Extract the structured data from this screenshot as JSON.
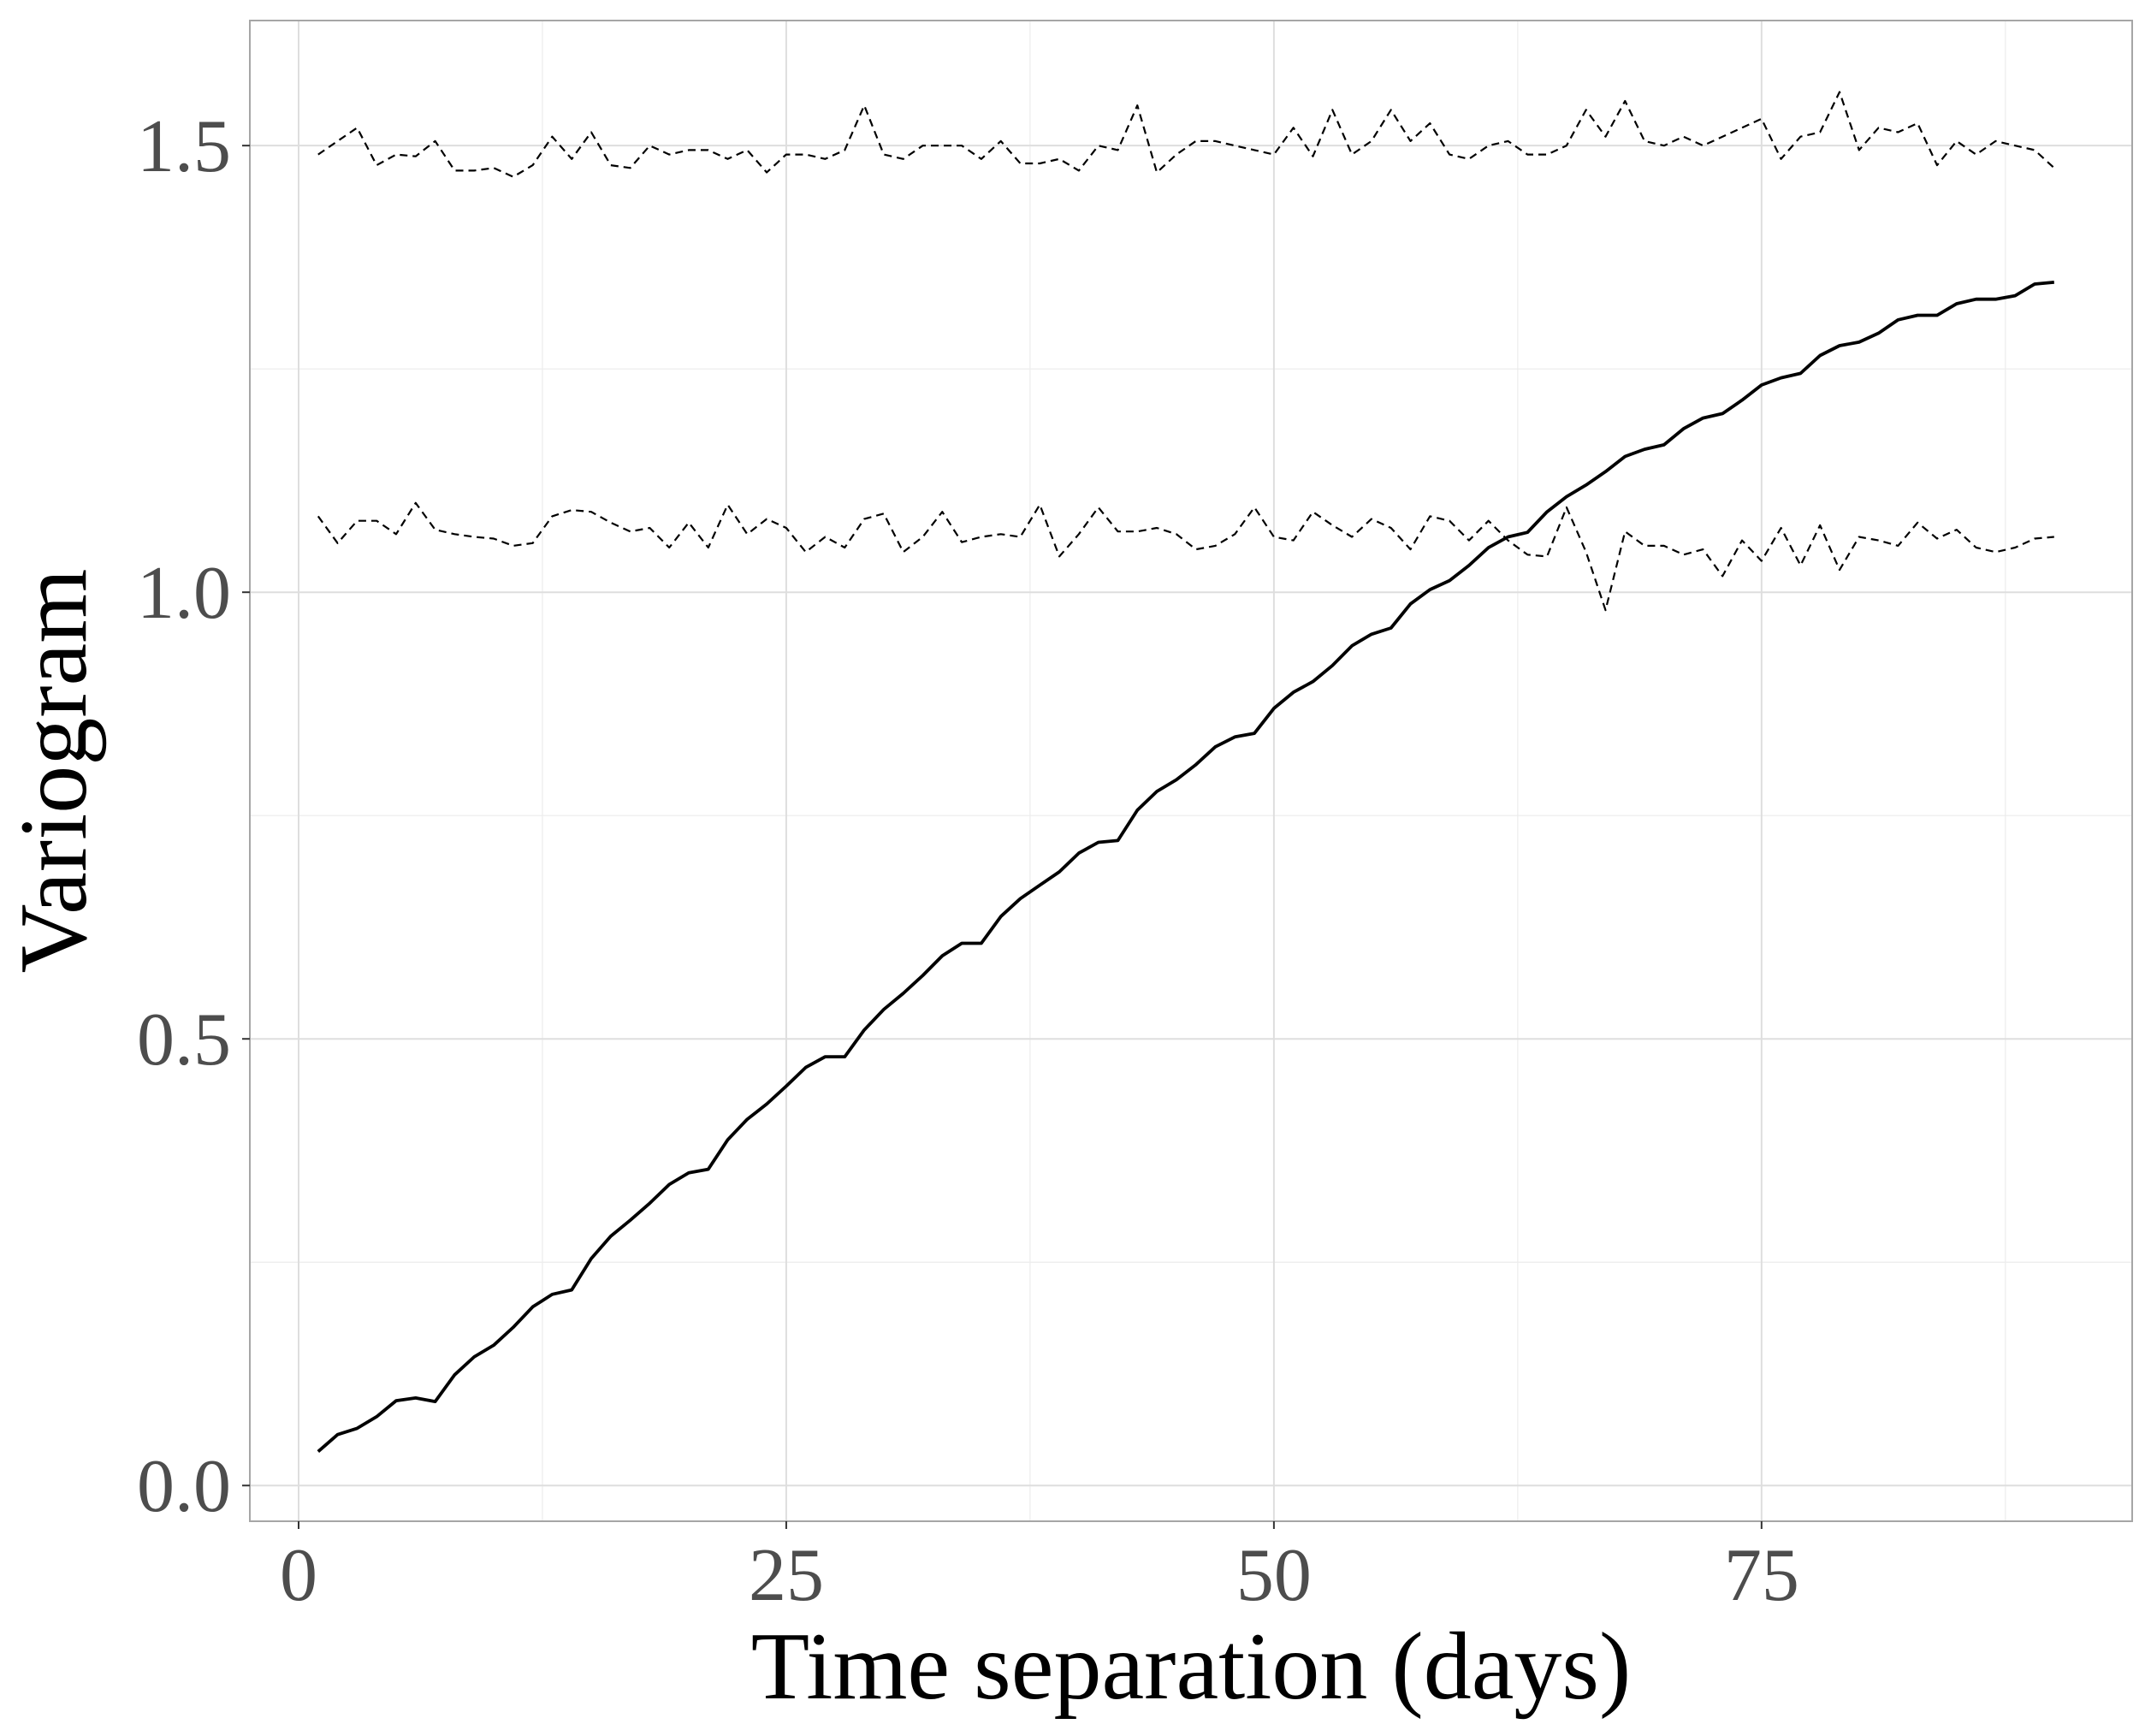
{
  "chart_data": {
    "type": "line",
    "title": "",
    "xlabel": "Time separation (days)",
    "ylabel": "Variogram",
    "xlim": [
      -2.5,
      94
    ],
    "ylim": [
      -0.04,
      1.64
    ],
    "x_ticks": [
      0,
      25,
      50,
      75
    ],
    "x_tick_labels": [
      "0",
      "25",
      "50",
      "75"
    ],
    "y_ticks": [
      0.0,
      0.5,
      1.0,
      1.5
    ],
    "y_tick_labels": [
      "0.0",
      "0.5",
      "1.0",
      "1.5"
    ],
    "grid": true,
    "legend": "none",
    "colors": {
      "line": "#000000",
      "grid_major": "#dedede",
      "grid_minor": "#ececec",
      "panel_border": "#a6a6a6",
      "tick_text": "#4d4d4d"
    },
    "series": [
      {
        "style": "solid",
        "x": [
          1,
          2,
          3,
          4,
          5,
          6,
          7,
          8,
          9,
          10,
          11,
          12,
          13,
          14,
          15,
          16,
          17,
          18,
          19,
          20,
          21,
          22,
          23,
          24,
          25,
          26,
          27,
          28,
          29,
          30,
          31,
          32,
          33,
          34,
          35,
          36,
          37,
          38,
          39,
          40,
          41,
          42,
          43,
          44,
          45,
          46,
          47,
          48,
          49,
          50,
          51,
          52,
          53,
          54,
          55,
          56,
          57,
          58,
          59,
          60,
          61,
          62,
          63,
          64,
          65,
          66,
          67,
          68,
          69,
          70,
          71,
          72,
          73,
          74,
          75,
          76,
          77,
          78,
          79,
          80,
          81,
          82,
          83,
          84,
          85,
          86,
          87,
          88,
          89,
          90
        ],
        "values": [
          0.038,
          0.057,
          0.064,
          0.077,
          0.095,
          0.098,
          0.094,
          0.124,
          0.144,
          0.157,
          0.177,
          0.2,
          0.214,
          0.219,
          0.254,
          0.279,
          0.297,
          0.316,
          0.337,
          0.35,
          0.354,
          0.387,
          0.41,
          0.427,
          0.447,
          0.468,
          0.48,
          0.48,
          0.51,
          0.533,
          0.551,
          0.571,
          0.593,
          0.607,
          0.607,
          0.637,
          0.657,
          0.672,
          0.687,
          0.708,
          0.72,
          0.722,
          0.756,
          0.777,
          0.79,
          0.807,
          0.827,
          0.838,
          0.842,
          0.87,
          0.888,
          0.9,
          0.918,
          0.94,
          0.953,
          0.96,
          0.987,
          1.003,
          1.013,
          1.03,
          1.05,
          1.062,
          1.067,
          1.09,
          1.107,
          1.12,
          1.135,
          1.152,
          1.16,
          1.165,
          1.183,
          1.195,
          1.2,
          1.215,
          1.232,
          1.24,
          1.245,
          1.265,
          1.276,
          1.28,
          1.29,
          1.305,
          1.31,
          1.31,
          1.323,
          1.328,
          1.328,
          1.332,
          1.345,
          1.347
        ]
      },
      {
        "style": "dashed",
        "x": [
          1,
          2,
          3,
          4,
          5,
          6,
          7,
          8,
          9,
          10,
          11,
          12,
          13,
          14,
          15,
          16,
          17,
          18,
          19,
          20,
          21,
          22,
          23,
          24,
          25,
          26,
          27,
          28,
          29,
          30,
          31,
          32,
          33,
          34,
          35,
          36,
          37,
          38,
          39,
          40,
          41,
          42,
          43,
          44,
          45,
          46,
          47,
          48,
          49,
          50,
          51,
          52,
          53,
          54,
          55,
          56,
          57,
          58,
          59,
          60,
          61,
          62,
          63,
          64,
          65,
          66,
          67,
          68,
          69,
          70,
          71,
          72,
          73,
          74,
          75,
          76,
          77,
          78,
          79,
          80,
          81,
          82,
          83,
          84,
          85,
          86,
          87,
          88,
          89,
          90
        ],
        "values": [
          1.49,
          1.505,
          1.52,
          1.478,
          1.49,
          1.488,
          1.505,
          1.472,
          1.472,
          1.475,
          1.465,
          1.478,
          1.51,
          1.485,
          1.515,
          1.478,
          1.475,
          1.5,
          1.49,
          1.495,
          1.495,
          1.485,
          1.495,
          1.47,
          1.49,
          1.49,
          1.485,
          1.495,
          1.545,
          1.49,
          1.485,
          1.5,
          1.5,
          1.5,
          1.485,
          1.505,
          1.48,
          1.48,
          1.485,
          1.472,
          1.5,
          1.495,
          1.545,
          1.47,
          1.49,
          1.505,
          1.505,
          1.5,
          1.495,
          1.49,
          1.52,
          1.488,
          1.54,
          1.49,
          1.505,
          1.54,
          1.505,
          1.525,
          1.49,
          1.485,
          1.5,
          1.505,
          1.49,
          1.49,
          1.5,
          1.54,
          1.51,
          1.55,
          1.505,
          1.5,
          1.51,
          1.5,
          1.51,
          1.52,
          1.53,
          1.485,
          1.51,
          1.515,
          1.56,
          1.495,
          1.52,
          1.515,
          1.525,
          1.478,
          1.505,
          1.49,
          1.505,
          1.5,
          1.495,
          1.475
        ]
      },
      {
        "style": "dashed",
        "x": [
          1,
          2,
          3,
          4,
          5,
          6,
          7,
          8,
          9,
          10,
          11,
          12,
          13,
          14,
          15,
          16,
          17,
          18,
          19,
          20,
          21,
          22,
          23,
          24,
          25,
          26,
          27,
          28,
          29,
          30,
          31,
          32,
          33,
          34,
          35,
          36,
          37,
          38,
          39,
          40,
          41,
          42,
          43,
          44,
          45,
          46,
          47,
          48,
          49,
          50,
          51,
          52,
          53,
          54,
          55,
          56,
          57,
          58,
          59,
          60,
          61,
          62,
          63,
          64,
          65,
          66,
          67,
          68,
          69,
          70,
          71,
          72,
          73,
          74,
          75,
          76,
          77,
          78,
          79,
          80,
          81,
          82,
          83,
          84,
          85,
          86,
          87,
          88,
          89,
          90
        ],
        "values": [
          1.085,
          1.055,
          1.08,
          1.08,
          1.065,
          1.1,
          1.07,
          1.065,
          1.062,
          1.06,
          1.052,
          1.055,
          1.085,
          1.092,
          1.09,
          1.078,
          1.068,
          1.072,
          1.05,
          1.078,
          1.05,
          1.098,
          1.065,
          1.082,
          1.072,
          1.045,
          1.062,
          1.05,
          1.082,
          1.088,
          1.045,
          1.062,
          1.09,
          1.056,
          1.062,
          1.065,
          1.062,
          1.098,
          1.04,
          1.065,
          1.095,
          1.068,
          1.068,
          1.072,
          1.065,
          1.048,
          1.052,
          1.065,
          1.095,
          1.062,
          1.058,
          1.09,
          1.075,
          1.062,
          1.082,
          1.072,
          1.048,
          1.085,
          1.08,
          1.058,
          1.08,
          1.058,
          1.042,
          1.04,
          1.095,
          1.045,
          0.98,
          1.068,
          1.052,
          1.052,
          1.042,
          1.048,
          1.018,
          1.058,
          1.035,
          1.072,
          1.03,
          1.075,
          1.025,
          1.062,
          1.058,
          1.052,
          1.078,
          1.06,
          1.07,
          1.05,
          1.045,
          1.05,
          1.06,
          1.062
        ]
      }
    ]
  }
}
